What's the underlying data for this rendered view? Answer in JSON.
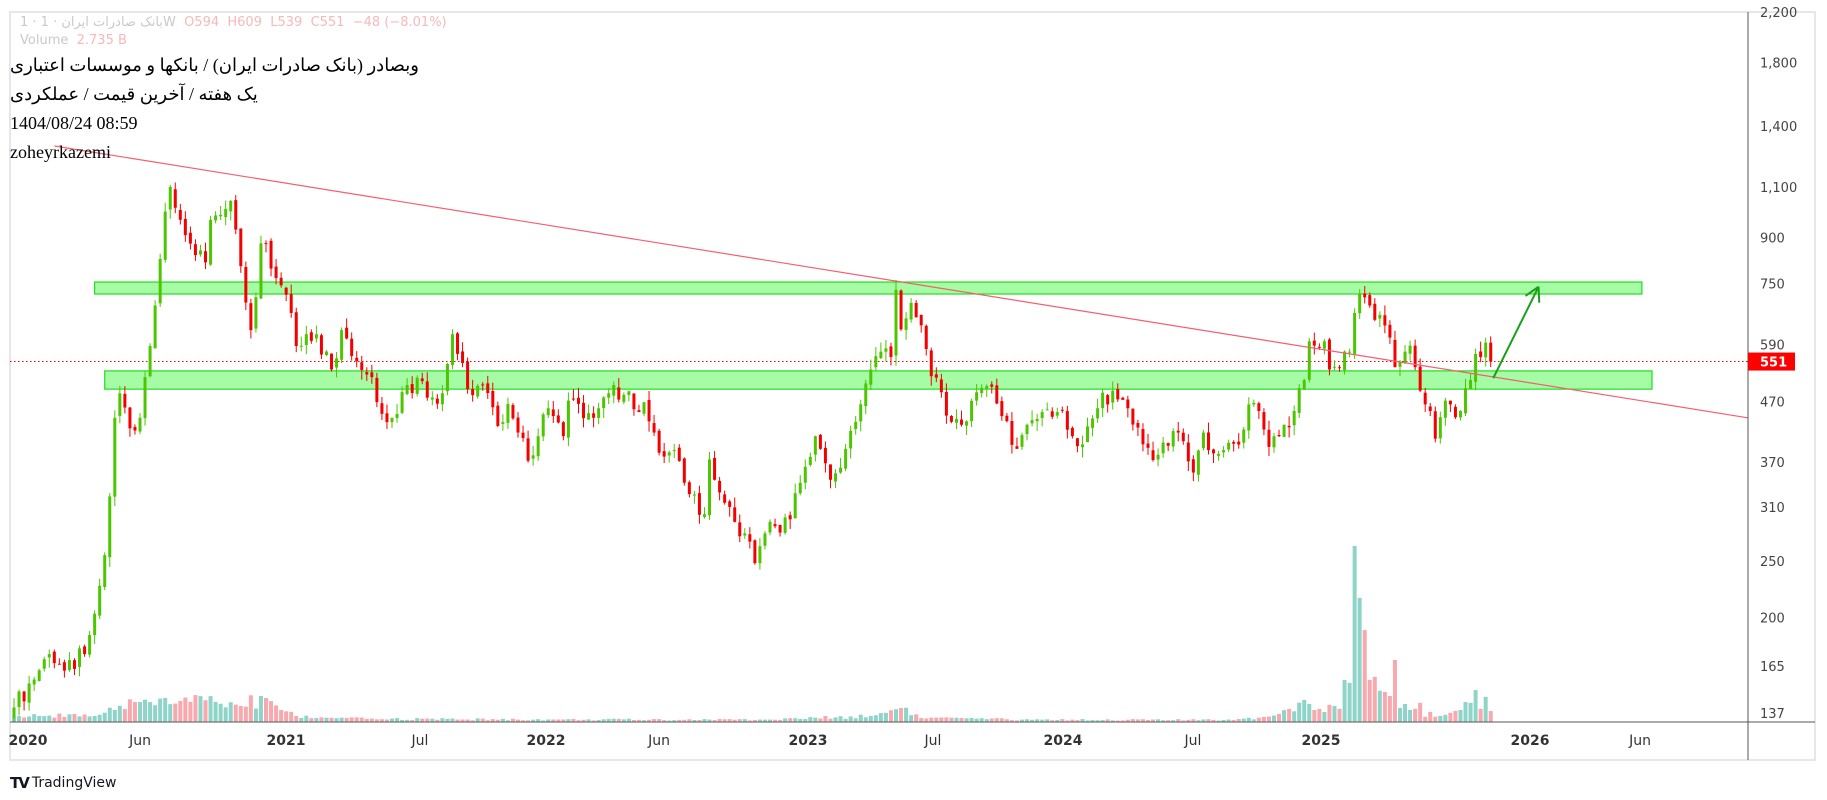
{
  "header": {
    "title_line": "وبصادر (بانک صادرات ایران) / بانکها و موسسات اعتباری",
    "subtitle_line": "یک هفته / آخرین قیمت / عملکردی",
    "datetime": "1404/08/24 08:59",
    "author": "zoheyrkazemi"
  },
  "legend": {
    "symbol": "1 · بانک صادرات ایران · 1W",
    "open": "O594",
    "high": "H609",
    "low": "L539",
    "close": "C551",
    "change": "−48 (−8.01%)",
    "volume_label": "Volume",
    "volume_value": "2.735 B"
  },
  "branding": "TradingView",
  "chart_data": {
    "type": "candlestick",
    "interval": "1W",
    "y_scale": "log",
    "ylim": [
      130,
      2300
    ],
    "y_ticks": [
      2200,
      1800,
      1400,
      1100,
      900,
      750,
      590,
      470,
      370,
      310,
      250,
      200,
      165,
      137
    ],
    "y_tick_labels": [
      "2,200",
      "1,800",
      "1,400",
      "1,100",
      "900",
      "750",
      "590",
      "470",
      "370",
      "310",
      "250",
      "200",
      "165",
      "137"
    ],
    "x_tick_labels": [
      "2020",
      "Jun",
      "2021",
      "Jul",
      "2022",
      "Jun",
      "2023",
      "Jul",
      "2024",
      "Jul",
      "2025",
      "2026",
      "Jun"
    ],
    "last_price": 551,
    "last_price_label": "551",
    "last_bar": {
      "open": 594,
      "high": 609,
      "low": 539,
      "close": 551
    },
    "close_key_points": [
      [
        0,
        140
      ],
      [
        7,
        173
      ],
      [
        10,
        162
      ],
      [
        14,
        173
      ],
      [
        16,
        203
      ],
      [
        18,
        256
      ],
      [
        19,
        323
      ],
      [
        20,
        441
      ],
      [
        21,
        486
      ],
      [
        23,
        423
      ],
      [
        25,
        441
      ],
      [
        26,
        518
      ],
      [
        27,
        586
      ],
      [
        28,
        688
      ],
      [
        29,
        827
      ],
      [
        30,
        998
      ],
      [
        31,
        1100
      ],
      [
        33,
        966
      ],
      [
        34,
        909
      ],
      [
        36,
        840
      ],
      [
        38,
        816
      ],
      [
        39,
        966
      ],
      [
        41,
        985
      ],
      [
        43,
        1041
      ],
      [
        45,
        804
      ],
      [
        47,
        624
      ],
      [
        48,
        711
      ],
      [
        49,
        880
      ],
      [
        50,
        880
      ],
      [
        52,
        767
      ],
      [
        54,
        718
      ],
      [
        56,
        586
      ],
      [
        58,
        614
      ],
      [
        60,
        614
      ],
      [
        63,
        534
      ],
      [
        65,
        624
      ],
      [
        68,
        552
      ],
      [
        71,
        518
      ],
      [
        73,
        448
      ],
      [
        75,
        441
      ],
      [
        78,
        502
      ],
      [
        81,
        510
      ],
      [
        83,
        478
      ],
      [
        85,
        486
      ],
      [
        87,
        614
      ],
      [
        88,
        568
      ],
      [
        90,
        494
      ],
      [
        93,
        502
      ],
      [
        96,
        427
      ],
      [
        98,
        466
      ],
      [
        100,
        416
      ],
      [
        102,
        372
      ],
      [
        104,
        410
      ],
      [
        106,
        458
      ],
      [
        109,
        410
      ],
      [
        110,
        472
      ],
      [
        112,
        466
      ],
      [
        115,
        441
      ],
      [
        117,
        478
      ],
      [
        119,
        502
      ],
      [
        120,
        474
      ],
      [
        125,
        469
      ],
      [
        127,
        416
      ],
      [
        128,
        384
      ],
      [
        131,
        388
      ],
      [
        133,
        341
      ],
      [
        134,
        326
      ],
      [
        137,
        301
      ],
      [
        138,
        374
      ],
      [
        139,
        345
      ],
      [
        141,
        315
      ],
      [
        143,
        292
      ],
      [
        145,
        279
      ],
      [
        147,
        248
      ],
      [
        149,
        279
      ],
      [
        151,
        287
      ],
      [
        154,
        295
      ],
      [
        156,
        341
      ],
      [
        159,
        410
      ],
      [
        160,
        390
      ],
      [
        162,
        345
      ],
      [
        164,
        362
      ],
      [
        165,
        390
      ],
      [
        167,
        434
      ],
      [
        170,
        534
      ],
      [
        172,
        573
      ],
      [
        174,
        561
      ],
      [
        175,
        732
      ],
      [
        176,
        626
      ],
      [
        178,
        695
      ],
      [
        180,
        636
      ],
      [
        181,
        579
      ],
      [
        182,
        520
      ],
      [
        184,
        488
      ],
      [
        186,
        434
      ],
      [
        188,
        429
      ],
      [
        191,
        488
      ],
      [
        193,
        500
      ],
      [
        196,
        444
      ],
      [
        199,
        390
      ],
      [
        201,
        429
      ],
      [
        204,
        451
      ],
      [
        207,
        451
      ],
      [
        210,
        410
      ],
      [
        212,
        397
      ],
      [
        215,
        458
      ],
      [
        218,
        491
      ],
      [
        221,
        458
      ],
      [
        224,
        397
      ],
      [
        227,
        381
      ],
      [
        231,
        416
      ],
      [
        234,
        355
      ],
      [
        236,
        416
      ],
      [
        237,
        388
      ],
      [
        238,
        383
      ],
      [
        240,
        388
      ],
      [
        242,
        398
      ],
      [
        244,
        421
      ],
      [
        245,
        465
      ],
      [
        247,
        453
      ],
      [
        248,
        421
      ],
      [
        249,
        393
      ],
      [
        251,
        410
      ],
      [
        252,
        429
      ],
      [
        254,
        453
      ],
      [
        255,
        496
      ],
      [
        256,
        512
      ],
      [
        257,
        597
      ],
      [
        258,
        587
      ],
      [
        260,
        597
      ],
      [
        261,
        534
      ],
      [
        263,
        537
      ],
      [
        265,
        573
      ],
      [
        266,
        668
      ],
      [
        267,
        720
      ],
      [
        269,
        688
      ],
      [
        270,
        650
      ],
      [
        271,
        663
      ],
      [
        273,
        606
      ],
      [
        274,
        539
      ],
      [
        275,
        550
      ],
      [
        276,
        573
      ],
      [
        277,
        587
      ],
      [
        278,
        539
      ],
      [
        279,
        491
      ],
      [
        280,
        465
      ],
      [
        281,
        453
      ],
      [
        282,
        406
      ],
      [
        283,
        442
      ],
      [
        284,
        472
      ],
      [
        285,
        465
      ],
      [
        286,
        442
      ],
      [
        287,
        453
      ],
      [
        288,
        496
      ],
      [
        289,
        512
      ],
      [
        290,
        568
      ],
      [
        291,
        561
      ],
      [
        292,
        594
      ],
      [
        293,
        551
      ]
    ],
    "volume_unit": "B",
    "volume_key_points": [
      [
        0,
        1.2
      ],
      [
        5,
        1.5
      ],
      [
        12,
        2
      ],
      [
        16,
        1.5
      ],
      [
        20,
        3
      ],
      [
        25,
        5
      ],
      [
        30,
        6
      ],
      [
        35,
        5
      ],
      [
        40,
        5
      ],
      [
        45,
        4
      ],
      [
        50,
        6
      ],
      [
        53,
        3
      ],
      [
        56,
        1.5
      ],
      [
        60,
        1
      ],
      [
        70,
        0.8
      ],
      [
        100,
        0.6
      ],
      [
        150,
        0.6
      ],
      [
        170,
        1.5
      ],
      [
        176,
        3.5
      ],
      [
        180,
        1
      ],
      [
        200,
        0.6
      ],
      [
        240,
        0.5
      ],
      [
        248,
        1.3
      ],
      [
        251,
        2
      ],
      [
        256,
        5.5
      ],
      [
        257,
        4.5
      ],
      [
        258,
        3
      ],
      [
        259,
        3.3
      ],
      [
        260,
        2.5
      ],
      [
        261,
        4.3
      ],
      [
        262,
        4
      ],
      [
        263,
        3.3
      ],
      [
        264,
        10.5
      ],
      [
        265,
        9.8
      ],
      [
        266,
        44
      ],
      [
        267,
        31
      ],
      [
        268,
        23
      ],
      [
        269,
        10.5
      ],
      [
        270,
        11.3
      ],
      [
        271,
        7.8
      ],
      [
        272,
        7.5
      ],
      [
        273,
        6.5
      ],
      [
        274,
        15.5
      ],
      [
        275,
        3.5
      ],
      [
        276,
        4.5
      ],
      [
        277,
        3
      ],
      [
        278,
        3.3
      ],
      [
        279,
        4.8
      ],
      [
        280,
        1.3
      ],
      [
        281,
        2.5
      ],
      [
        282,
        1.3
      ],
      [
        283,
        1.5
      ],
      [
        284,
        1.8
      ],
      [
        285,
        2.3
      ],
      [
        286,
        2.8
      ],
      [
        287,
        3
      ],
      [
        288,
        5
      ],
      [
        289,
        4.8
      ],
      [
        290,
        8
      ],
      [
        291,
        3.3
      ],
      [
        292,
        6.3
      ],
      [
        293,
        2.735
      ]
    ],
    "annotations": {
      "resistance_zone": {
        "price_low": 720,
        "price_high": 755,
        "week_start": 16,
        "week_end": 323
      },
      "support_zone": {
        "price_low": 494,
        "price_high": 531,
        "week_start": 18,
        "week_end": 325
      },
      "trendline": {
        "from": [
          8,
          1294
        ],
        "to": [
          344,
          441
        ]
      },
      "target_arrow": {
        "from": [
          293.5,
          516
        ],
        "to": [
          302.5,
          741
        ]
      }
    },
    "colors": {
      "up": "#4cc600",
      "down": "#f50000",
      "volume_up": "#8ed4c9",
      "volume_down": "#f8a9ae",
      "zone_fill": "#a0fca0",
      "zone_border": "#22dd22",
      "trendline": "#f06070",
      "arrow": "#1aa01a",
      "price_label": "#ff0000"
    }
  }
}
